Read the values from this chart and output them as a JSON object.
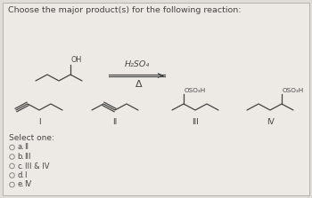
{
  "title": "Choose the major product(s) for the following reaction:",
  "background_color": "#e0ddd8",
  "panel_color": "#edeae5",
  "text_color": "#555555",
  "dark_color": "#444444",
  "title_fontsize": 6.8,
  "options_label": "Select one:",
  "options": [
    {
      "letter": "a.",
      "text": "II"
    },
    {
      "letter": "b.",
      "text": "III"
    },
    {
      "letter": "c.",
      "text": "III & IV"
    },
    {
      "letter": "d.",
      "text": "I"
    },
    {
      "letter": "e.",
      "text": "IV"
    }
  ],
  "reagent_top": "H₂SO₄",
  "reagent_bottom": "Δ",
  "oso3h_label": "OSO₃H"
}
